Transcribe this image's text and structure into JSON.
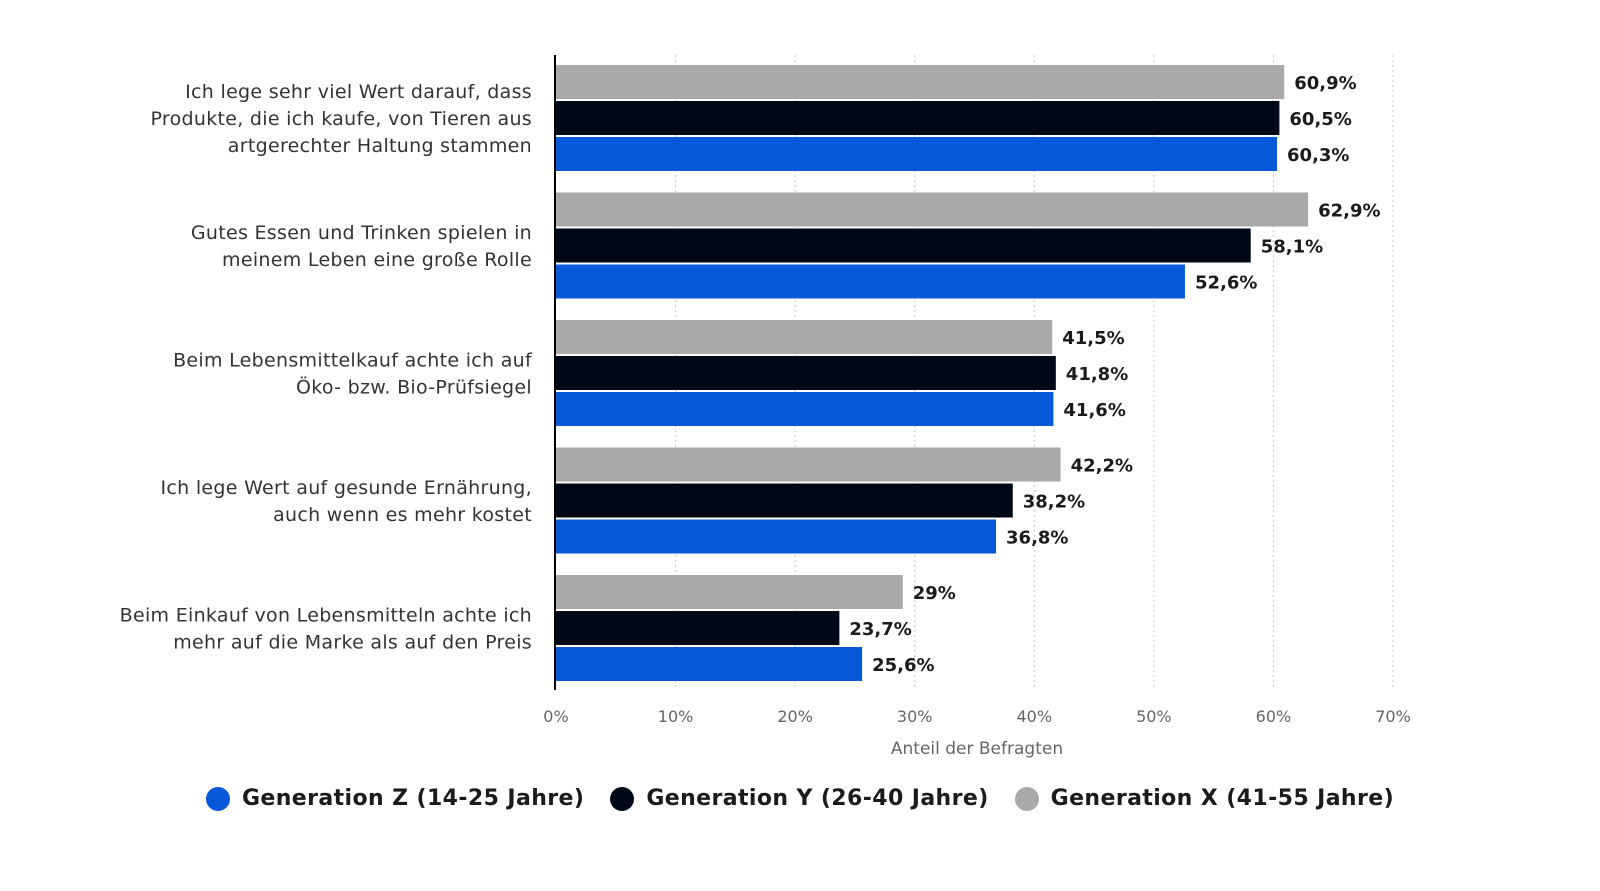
{
  "chart_data": {
    "type": "bar",
    "orientation": "horizontal",
    "categories": [
      [
        "Ich lege sehr viel Wert darauf, dass",
        "Produkte, die ich kaufe, von Tieren aus",
        "artgerechter Haltung stammen"
      ],
      [
        "Gutes Essen und Trinken spielen in",
        "meinem Leben eine große Rolle"
      ],
      [
        "Beim Lebensmittelkauf achte ich auf",
        "Öko- bzw. Bio-Prüfsiegel"
      ],
      [
        "Ich lege Wert auf gesunde Ernährung,",
        "auch wenn es mehr kostet"
      ],
      [
        "Beim Einkauf von Lebensmitteln achte ich",
        "mehr auf die Marke als auf den Preis"
      ]
    ],
    "series": [
      {
        "name": "Generation X (41-55 Jahre)",
        "color": "#a9a9a9",
        "values": [
          60.9,
          62.9,
          41.5,
          42.2,
          29
        ],
        "labels": [
          "60,9%",
          "62,9%",
          "41,5%",
          "42,2%",
          "29%"
        ]
      },
      {
        "name": "Generation Y (26-40 Jahre)",
        "color": "#000818",
        "values": [
          60.5,
          58.1,
          41.8,
          38.2,
          23.7
        ],
        "labels": [
          "60,5%",
          "58,1%",
          "41,8%",
          "38,2%",
          "23,7%"
        ]
      },
      {
        "name": "Generation Z (14-25 Jahre)",
        "color": "#0757d9",
        "values": [
          60.3,
          52.6,
          41.6,
          36.8,
          25.6
        ],
        "labels": [
          "60,3%",
          "52,6%",
          "41,6%",
          "36,8%",
          "25,6%"
        ]
      }
    ],
    "xlabel": "Anteil der Befragten",
    "xlim": [
      0,
      70
    ],
    "ticks": [
      "0%",
      "10%",
      "20%",
      "30%",
      "40%",
      "50%",
      "60%",
      "70%"
    ],
    "grid": true,
    "legend": {
      "placement": "bottom",
      "items": [
        {
          "name": "Generation Z (14-25 Jahre)",
          "color": "#0757d9"
        },
        {
          "name": "Generation Y (26-40 Jahre)",
          "color": "#000818"
        },
        {
          "name": "Generation X (41-55 Jahre)",
          "color": "#a9a9a9"
        }
      ]
    }
  }
}
